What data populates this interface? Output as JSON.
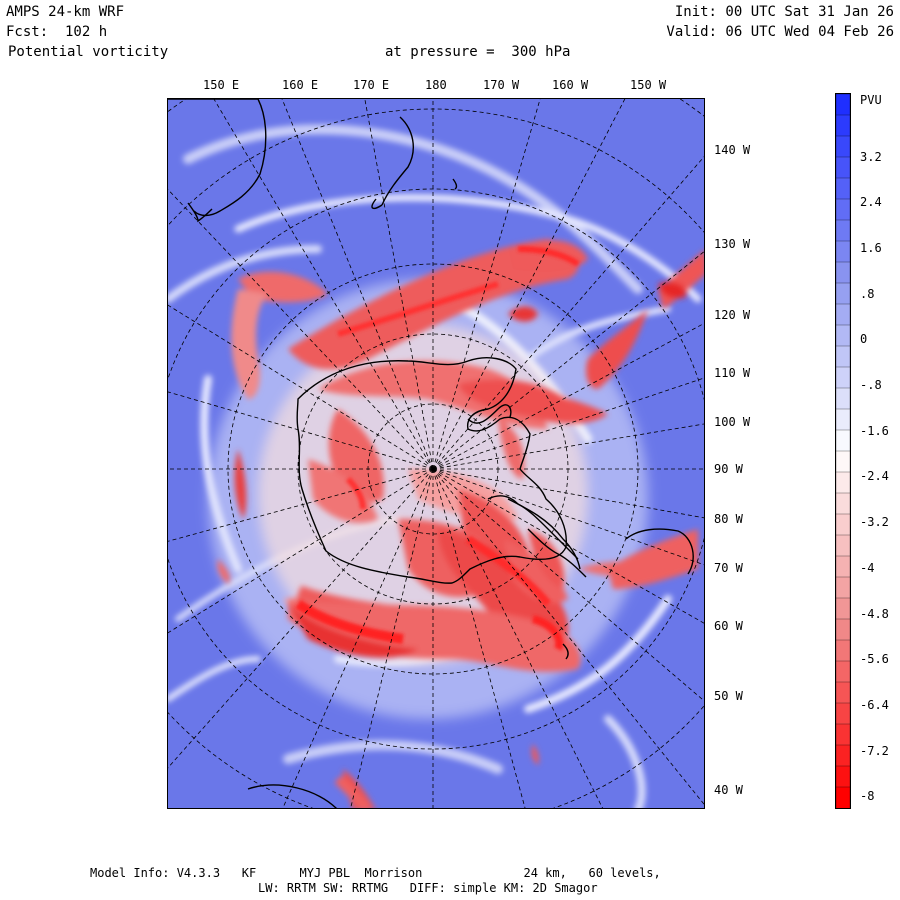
{
  "header": {
    "model": "AMPS 24-km WRF",
    "forecast": "Fcst:  102 h",
    "field": "Potential vorticity",
    "level": "at pressure =  300 hPa",
    "init": "Init: 00 UTC Sat 31 Jan 26",
    "valid": "Valid: 06 UTC Wed 04 Feb 26"
  },
  "map": {
    "top_longitudes": [
      "150 E",
      "160 E",
      "170 E",
      "180",
      "170 W",
      "160 W",
      "150 W"
    ],
    "right_longitudes": [
      "140 W",
      "130 W",
      "120 W",
      "110 W",
      "100 W",
      "90 W",
      "80 W",
      "70 W",
      "60 W",
      "50 W",
      "40 W"
    ]
  },
  "colorbar": {
    "unit": "PVU",
    "labels": [
      "3.2",
      "2.4",
      "1.6",
      ".8",
      "0",
      "-.8",
      "-1.6",
      "-2.4",
      "-3.2",
      "-4",
      "-4.8",
      "-5.6",
      "-6.4",
      "-7.2",
      "-8"
    ],
    "colors": {
      "high": "#1f2fff",
      "mid_blue": "#8c96f0",
      "neutral": "#ffffff",
      "mid_red": "#f08c8c",
      "low": "#ff0000"
    }
  },
  "footer": {
    "line1": "Model Info: V4.3.3   KF      MYJ PBL  Morrison              24 km,   60 levels,",
    "line2": "LW: RRTM SW: RRTMG   DIFF: simple KM: 2D Smagor"
  }
}
